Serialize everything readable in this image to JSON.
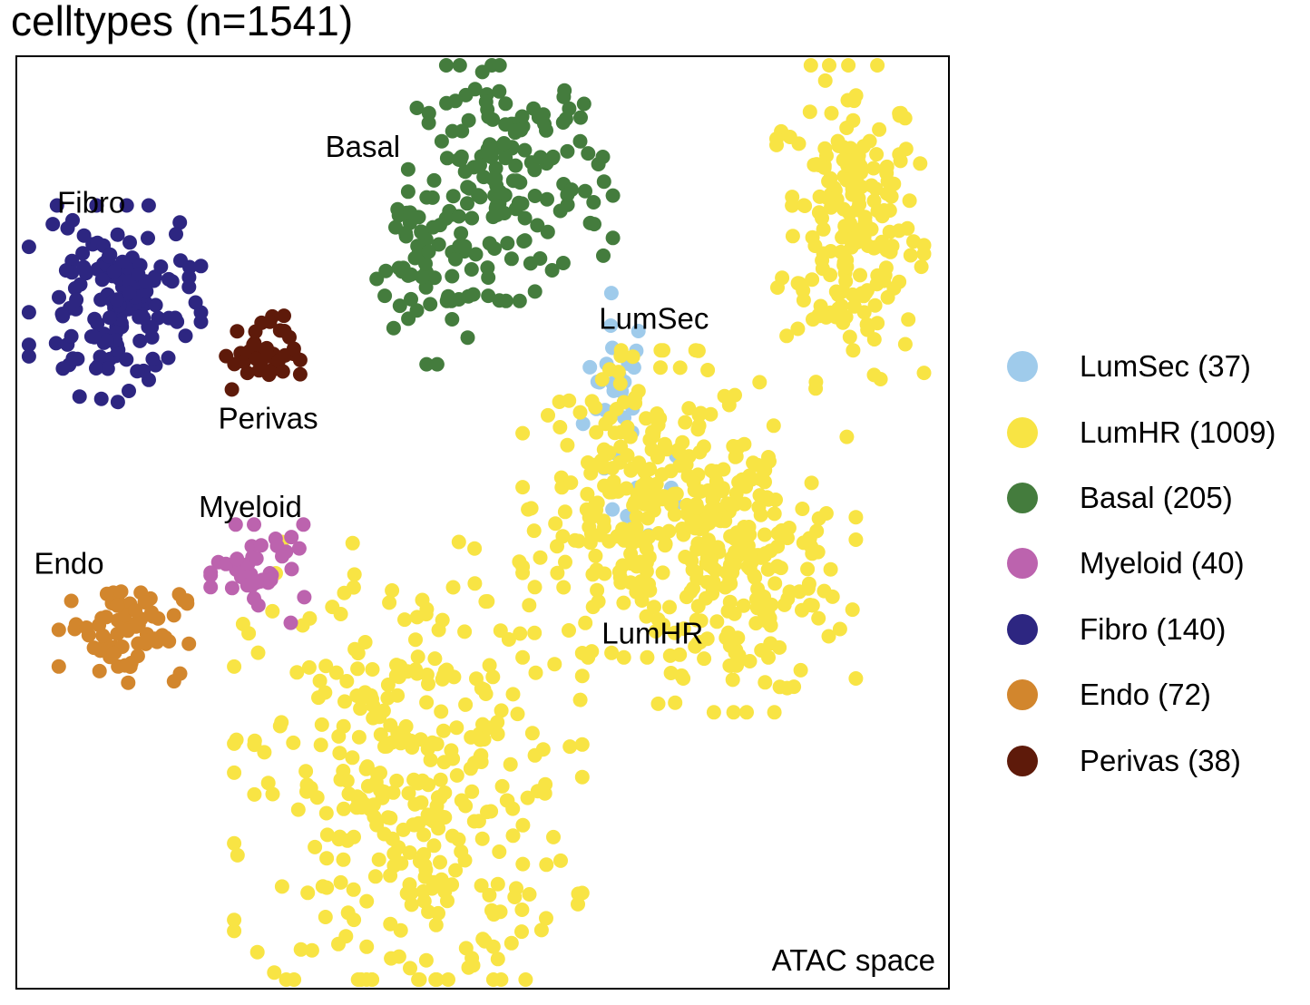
{
  "chart_data": {
    "type": "scatter",
    "title": "celltypes (n=1541)",
    "xlim": [
      0,
      100
    ],
    "ylim": [
      0,
      100
    ],
    "grid": false,
    "legend_position": "right",
    "space_label": "ATAC space",
    "series": [
      {
        "name": "LumSec",
        "count_label": "LumSec (37)",
        "color": "#9fcbeb",
        "label_text": "LumSec",
        "label_pos": [
          62.5,
          70.8
        ],
        "clusters": [
          {
            "cx": 64.5,
            "cy": 63.5,
            "sx": 1.8,
            "sy": 5.5,
            "n": 28
          },
          {
            "cx": 69.5,
            "cy": 51.0,
            "sx": 2.0,
            "sy": 4.0,
            "n": 9
          }
        ]
      },
      {
        "name": "LumHR",
        "count_label": "LumHR (1009)",
        "color": "#f8e444",
        "label_text": "LumHR",
        "label_pos": [
          62.8,
          37.0
        ],
        "clusters": [
          {
            "cx": 89.5,
            "cy": 82.0,
            "sx": 3.6,
            "sy": 8.0,
            "n": 200
          },
          {
            "cx": 67.5,
            "cy": 52.0,
            "sx": 6.0,
            "sy": 7.5,
            "n": 240
          },
          {
            "cx": 78.0,
            "cy": 45.0,
            "sx": 5.5,
            "sy": 7.0,
            "n": 210
          },
          {
            "cx": 42.0,
            "cy": 21.5,
            "sx": 8.5,
            "sy": 12.0,
            "n": 359
          }
        ]
      },
      {
        "name": "Basal",
        "count_label": "Basal (205)",
        "color": "#447c3d",
        "label_text": "Basal",
        "label_pos": [
          33.1,
          89.3
        ],
        "clusters": [
          {
            "cx": 53.0,
            "cy": 87.0,
            "sx": 5.0,
            "sy": 6.0,
            "n": 150
          },
          {
            "cx": 44.0,
            "cy": 78.0,
            "sx": 3.0,
            "sy": 5.0,
            "n": 55
          }
        ]
      },
      {
        "name": "Myeloid",
        "count_label": "Myeloid (40)",
        "color": "#bc63ae",
        "label_text": "Myeloid",
        "label_pos": [
          19.5,
          50.6
        ],
        "clusters": [
          {
            "cx": 26.5,
            "cy": 44.5,
            "sx": 2.6,
            "sy": 2.4,
            "n": 40
          }
        ]
      },
      {
        "name": "Fibro",
        "count_label": "Fibro (140)",
        "color": "#2d2681",
        "label_text": "Fibro",
        "label_pos": [
          4.3,
          83.3
        ],
        "clusters": [
          {
            "cx": 10.5,
            "cy": 73.5,
            "sx": 4.2,
            "sy": 4.8,
            "n": 140
          }
        ]
      },
      {
        "name": "Endo",
        "count_label": "Endo (72)",
        "color": "#d2862d",
        "label_text": "Endo",
        "label_pos": [
          1.8,
          44.5
        ],
        "clusters": [
          {
            "cx": 11.5,
            "cy": 38.5,
            "sx": 3.2,
            "sy": 2.6,
            "n": 72
          }
        ]
      },
      {
        "name": "Perivas",
        "count_label": "Perivas (38)",
        "color": "#5e1a0a",
        "label_text": "Perivas",
        "label_pos": [
          21.6,
          60.1
        ],
        "clusters": [
          {
            "cx": 26.0,
            "cy": 68.0,
            "sx": 2.0,
            "sy": 2.0,
            "n": 38
          }
        ]
      }
    ]
  }
}
